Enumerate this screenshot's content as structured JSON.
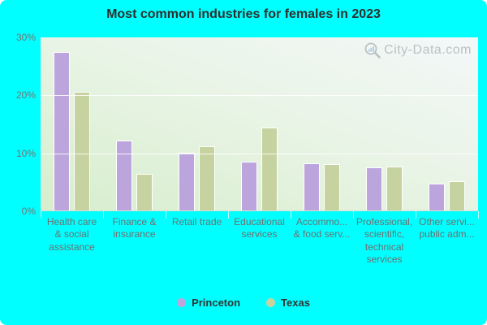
{
  "title": "Most common industries for females in 2023",
  "watermark": {
    "text": "City-Data.com",
    "icon": "magnifier-bar-chart-icon"
  },
  "colors": {
    "background": "#00ffff",
    "princeton_bar": "#bca5dc",
    "texas_bar": "#c6d2a0",
    "title_text": "#2e2e2e",
    "axis_text": "#757575",
    "legend_text": "#333333",
    "watermark_text": "#8b969e"
  },
  "legend": {
    "items": [
      {
        "label": "Princeton",
        "color": "#bca5dc"
      },
      {
        "label": "Texas",
        "color": "#c6d2a0"
      }
    ]
  },
  "chart_data": {
    "type": "bar",
    "title": "Most common industries for females in 2023",
    "categories": [
      "Health care & social assistance",
      "Finance & insurance",
      "Retail trade",
      "Educational services",
      "Accommodation & food services",
      "Professional, scientific, technical services",
      "Other services, public administration"
    ],
    "category_display_lines": [
      [
        "Health care",
        "& social",
        "assistance"
      ],
      [
        "Finance &",
        "insurance"
      ],
      [
        "Retail trade"
      ],
      [
        "Educational",
        "services"
      ],
      [
        "Accommo...",
        "& food serv..."
      ],
      [
        "Professional,",
        "scientific,",
        "technical",
        "services"
      ],
      [
        "Other servi...",
        "public adm..."
      ]
    ],
    "series": [
      {
        "name": "Princeton",
        "color": "#bca5dc",
        "values": [
          27.3,
          12.1,
          10.0,
          8.4,
          8.2,
          7.5,
          4.6
        ]
      },
      {
        "name": "Texas",
        "color": "#c6d2a0",
        "values": [
          20.4,
          6.3,
          11.1,
          14.3,
          8.0,
          7.6,
          5.0
        ]
      }
    ],
    "xlabel": "",
    "ylabel": "",
    "ylim": [
      0,
      30
    ],
    "y_ticks": [
      0,
      10,
      20,
      30
    ],
    "y_tick_labels": [
      "0%",
      "10%",
      "20%",
      "30%"
    ],
    "grid": "horizontal gridlines at 10% and 20%",
    "legend_position": "bottom"
  }
}
